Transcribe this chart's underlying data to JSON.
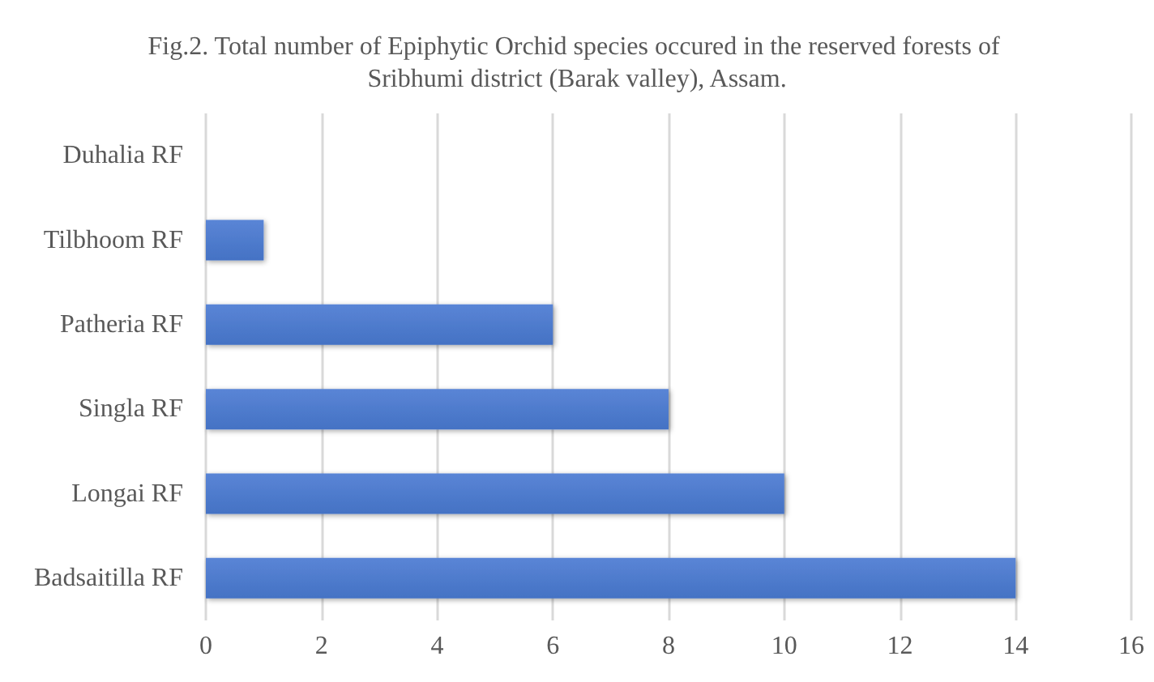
{
  "chart_data": {
    "type": "bar",
    "orientation": "horizontal",
    "title": "Fig.2. Total number of Epiphytic Orchid species occured in the reserved forests of Sribhumi district (Barak valley), Assam.",
    "categories": [
      "Duhalia RF",
      "Tilbhoom RF",
      "Patheria RF",
      "Singla RF",
      "Longai RF",
      "Badsaitilla RF"
    ],
    "values": [
      0,
      1,
      6,
      8,
      10,
      14
    ],
    "color": "#4472c4",
    "xlim": [
      0,
      16
    ],
    "xticks": [
      0,
      2,
      4,
      6,
      8,
      10,
      12,
      14,
      16
    ],
    "grid": "x"
  }
}
